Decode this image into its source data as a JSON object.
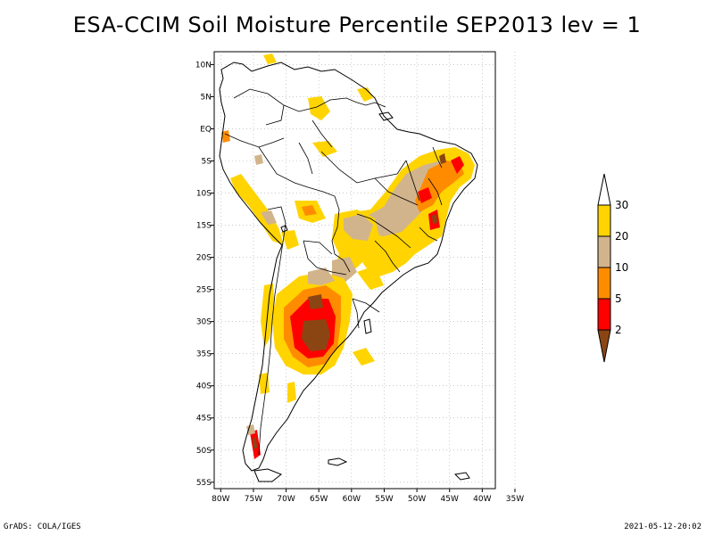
{
  "title": "ESA-CCIM Soil Moisture Percentile SEP2013 lev = 1",
  "footer": {
    "left": "GrADS: COLA/IGES",
    "right": "2021-05-12-20:02"
  },
  "axes": {
    "lon_labels": [
      "80W",
      "75W",
      "70W",
      "65W",
      "60W",
      "55W",
      "50W",
      "45W",
      "40W",
      "35W"
    ],
    "lon_values": [
      -80,
      -75,
      -70,
      -65,
      -60,
      -55,
      -50,
      -45,
      -40,
      -35
    ],
    "lat_labels": [
      "10N",
      "5N",
      "EQ",
      "5S",
      "10S",
      "15S",
      "20S",
      "25S",
      "30S",
      "35S",
      "40S",
      "45S",
      "50S",
      "55S"
    ],
    "lat_values": [
      10,
      5,
      0,
      -5,
      -10,
      -15,
      -20,
      -25,
      -30,
      -35,
      -40,
      -45,
      -50,
      -55
    ],
    "lon_range": [
      -81,
      -38
    ],
    "lat_range": [
      12,
      -56
    ],
    "grid": true
  },
  "colorbar": {
    "levels": [
      "30",
      "20",
      "10",
      "5",
      "2"
    ],
    "colors": {
      "above_30": "#ffffff",
      "20_30": "#ffd400",
      "10_20": "#d2b48c",
      "5_10": "#ff8c00",
      "2_5": "#ff0000",
      "below_2": "#8b4513"
    }
  },
  "colors": {
    "yellow": "#ffd400",
    "tan": "#d2b48c",
    "orange": "#ff8c00",
    "red": "#ff0000",
    "brown": "#8b4513",
    "outline": "#000000",
    "grid": "#aaaaaa"
  }
}
